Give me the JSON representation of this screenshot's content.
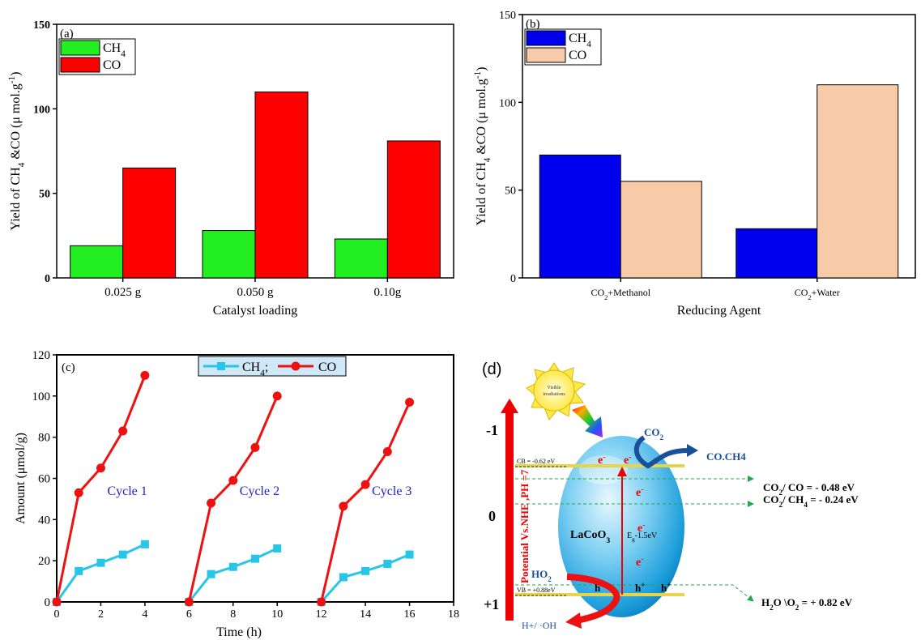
{
  "chart_data": [
    {
      "type": "bar",
      "panel_label": "(a)",
      "categories": [
        "0.025 g",
        "0.050 g",
        "0.10g"
      ],
      "series": [
        {
          "name": "CH4",
          "values": [
            19,
            28,
            23
          ],
          "color": "#22ee22"
        },
        {
          "name": "CO",
          "values": [
            65,
            110,
            81
          ],
          "color": "#ff0000"
        }
      ],
      "xlabel": "Catalyst loading",
      "ylabel": "Yield of CH4 &CO (μ mol.g-1)",
      "ylim": [
        0,
        150
      ],
      "yticks": [
        "0",
        "50",
        "100",
        "150"
      ],
      "legend": "top-left"
    },
    {
      "type": "bar",
      "panel_label": "(b)",
      "categories": [
        "CO2+Methanol",
        "CO2+Water"
      ],
      "series": [
        {
          "name": "CH4",
          "values": [
            70,
            28
          ],
          "color": "#0000ee"
        },
        {
          "name": "CO",
          "values": [
            55,
            110
          ],
          "color": "#f8cba8"
        }
      ],
      "xlabel": "Reducing Agent",
      "ylabel": "Yield of CH4 &CO (μ mol.g-1)",
      "ylim": [
        0,
        150
      ],
      "yticks": [
        "0",
        "50",
        "100",
        "150"
      ],
      "legend": "top-left"
    },
    {
      "type": "line",
      "panel_label": "(c)",
      "series": [
        {
          "name": "CH4;",
          "color": "#27c6e9",
          "marker": "square",
          "segments": [
            {
              "x": [
                0,
                1,
                2,
                3,
                4
              ],
              "y": [
                0,
                15,
                19,
                23,
                28
              ]
            },
            {
              "x": [
                6,
                7,
                8,
                9,
                10
              ],
              "y": [
                0,
                13.5,
                17,
                21,
                26
              ]
            },
            {
              "x": [
                12,
                13,
                14,
                15,
                16
              ],
              "y": [
                0,
                12,
                15,
                18.5,
                23
              ]
            }
          ]
        },
        {
          "name": "CO",
          "color": "#ee1111",
          "marker": "circle",
          "segments": [
            {
              "x": [
                0,
                1,
                2,
                3,
                4
              ],
              "y": [
                0,
                53,
                65,
                83,
                110
              ]
            },
            {
              "x": [
                6,
                7,
                8,
                9,
                10
              ],
              "y": [
                0,
                48,
                59,
                75,
                100
              ]
            },
            {
              "x": [
                12,
                13,
                14,
                15,
                16
              ],
              "y": [
                0,
                46.5,
                57,
                73,
                97
              ]
            }
          ]
        }
      ],
      "annotations": [
        "Cycle 1",
        "Cycle 2",
        "Cycle 3"
      ],
      "xlabel": "Time (h)",
      "ylabel": "Amount (μmol/g)",
      "xlim": [
        0,
        18
      ],
      "ylim": [
        0,
        120
      ],
      "xticks": [
        "0",
        "2",
        "4",
        "6",
        "8",
        "10",
        "12",
        "14",
        "16",
        "18"
      ],
      "yticks": [
        "0",
        "20",
        "40",
        "60",
        "80",
        "100",
        "120"
      ],
      "legend": "top-center"
    }
  ],
  "diagram_d": {
    "panel_label": "(d)",
    "sun_text_1": "Visible",
    "sun_text_2": "irradiations",
    "axis_label": "Potential Vs.NHE ,PH =7",
    "axis_ticks": [
      "-1",
      "0",
      "+1"
    ],
    "cb_label": "CB = -0.62 eV",
    "vb_label": "VB = +0.88eV",
    "material": "LaCoO3",
    "bandgap": "Eg-1.5eV",
    "electron": "e-",
    "hole": "h+",
    "co2": "CO2",
    "products": "CO.CH4",
    "ho2": "HO2",
    "hplus_oh": "H+/ ·OH",
    "level_co": "CO2/ CO = - 0.48 eV",
    "level_ch4": "CO2/ CH4 = - 0.24 eV",
    "level_o2": "H2O \\O2 = + 0.82 eV"
  }
}
